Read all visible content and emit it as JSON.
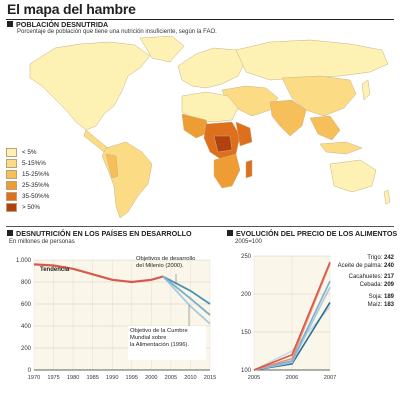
{
  "title": "El mapa del hambre",
  "map": {
    "heading": "POBLACIÓN DESNUTRIDA",
    "subtitle": "Porcentaje de población que tiene una nutrición insuficiente, según la FAO.",
    "legend": [
      {
        "label": "< 5%",
        "color": "#fdf1b3"
      },
      {
        "label": "5-15%%",
        "color": "#fbdc84"
      },
      {
        "label": "15-25%%",
        "color": "#f7bf5a"
      },
      {
        "label": "25-35%%",
        "color": "#ee9c34"
      },
      {
        "label": "35-50%%",
        "color": "#de6f1c"
      },
      {
        "label": "> 50%",
        "color": "#b1420e"
      }
    ],
    "colors": {
      "ocean": "#ffffff",
      "land_base": "#fbeab0",
      "border": "#c9b184"
    }
  },
  "chart_data": [
    {
      "type": "line",
      "title": "DESNUTRICIÓN EN LOS PAÍSES EN DESARROLLO",
      "subtitle": "En millones de personas",
      "x": [
        1970,
        1975,
        1980,
        1985,
        1990,
        1995,
        2000,
        2005,
        2010,
        2015
      ],
      "xlim": [
        1970,
        2015
      ],
      "ylim": [
        0,
        1000
      ],
      "yticks": [
        0,
        200,
        400,
        600,
        800,
        "1.000"
      ],
      "series": [
        {
          "name": "Tendencia",
          "color": "#d65a4a",
          "points": [
            [
              1970,
              960
            ],
            [
              1975,
              950
            ],
            [
              1980,
              920
            ],
            [
              1985,
              870
            ],
            [
              1990,
              820
            ],
            [
              1995,
              800
            ],
            [
              2000,
              820
            ],
            [
              2003,
              850
            ]
          ]
        },
        {
          "name": "Objetivo de desarrollo del Milenio (2000).",
          "color": "#4a93b8",
          "points": [
            [
              2003,
              850
            ],
            [
              2010,
              720
            ],
            [
              2015,
              600
            ]
          ]
        },
        {
          "name": "Objetivo de la Cumbre Mundial sobre la Alimentación (1996).",
          "color": "#a9c9dd",
          "points": [
            [
              2003,
              850
            ],
            [
              2010,
              580
            ],
            [
              2015,
              420
            ]
          ]
        },
        {
          "name": "",
          "color": "#7fb0cc",
          "points": [
            [
              2003,
              850
            ],
            [
              2010,
              650
            ],
            [
              2015,
              500
            ]
          ]
        }
      ],
      "annotations": {
        "trend": "Tendencia",
        "mdg": "Objetivos de desarrollo del Milenio (2000).",
        "wfs": "Objetivo de la Cumbre Mundial sobre la Alimentación (1996)."
      },
      "grid": true
    },
    {
      "type": "line",
      "title": "EVOLUCIÓN DEL PRECIO DE LOS ALIMENTOS",
      "subtitle": "2005=100",
      "x": [
        2005,
        2006,
        2007
      ],
      "xlim": [
        2005,
        2007
      ],
      "ylim": [
        100,
        250
      ],
      "yticks": [
        100,
        150,
        200,
        250
      ],
      "series": [
        {
          "name": "Trigo",
          "value_label": "242",
          "color": "#d65a4a",
          "values": [
            100,
            120,
            242
          ]
        },
        {
          "name": "Aceite de palma",
          "value_label": "240",
          "color": "#e8907a",
          "values": [
            100,
            115,
            240
          ]
        },
        {
          "name": "Cacahuetes",
          "value_label": "217",
          "color": "#7fb0cc",
          "values": [
            100,
            112,
            217
          ]
        },
        {
          "name": "Cebada",
          "value_label": "209",
          "color": "#a9c9dd",
          "values": [
            100,
            110,
            209
          ]
        },
        {
          "name": "Soja",
          "value_label": "189",
          "color": "#2c6f95",
          "values": [
            100,
            108,
            189
          ]
        },
        {
          "name": "Maíz",
          "value_label": "183",
          "color": "#c9d9e4",
          "values": [
            100,
            125,
            183
          ]
        }
      ],
      "labels": [
        "Trigo: 242",
        "Aceite de palma: 240",
        "Cacahuetes: 217",
        "Cebada: 209",
        "Soja: 189",
        "Maíz: 183"
      ],
      "grid": true
    }
  ]
}
